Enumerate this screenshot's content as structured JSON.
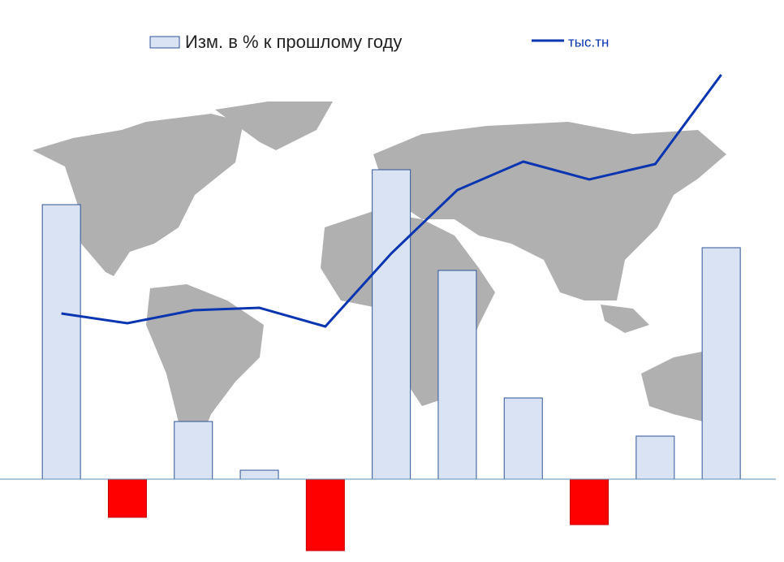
{
  "chart_data": {
    "type": "bar-line",
    "categories": [
      null,
      null,
      null,
      null,
      null,
      null,
      null,
      null,
      null,
      null,
      null
    ],
    "series": [
      {
        "name": "Изм. в % к прошлому году",
        "type": "bar",
        "color": "#dae3f3",
        "negative_color": "#ff0000",
        "values": [
          33.8,
          -4.7,
          7.1,
          1.1,
          -8.8,
          38.1,
          25.7,
          10,
          -5.6,
          5.3,
          28.5
        ]
      },
      {
        "name": "тыс.тн",
        "type": "line",
        "axis": "y2",
        "color": "#0a35b0",
        "values": [
          306,
          294,
          310,
          313,
          290,
          380,
          458,
          493,
          471,
          490,
          600
        ]
      }
    ],
    "ylim": [
      -10.2,
      59
    ],
    "y2lim": [
      0,
      692
    ]
  }
}
